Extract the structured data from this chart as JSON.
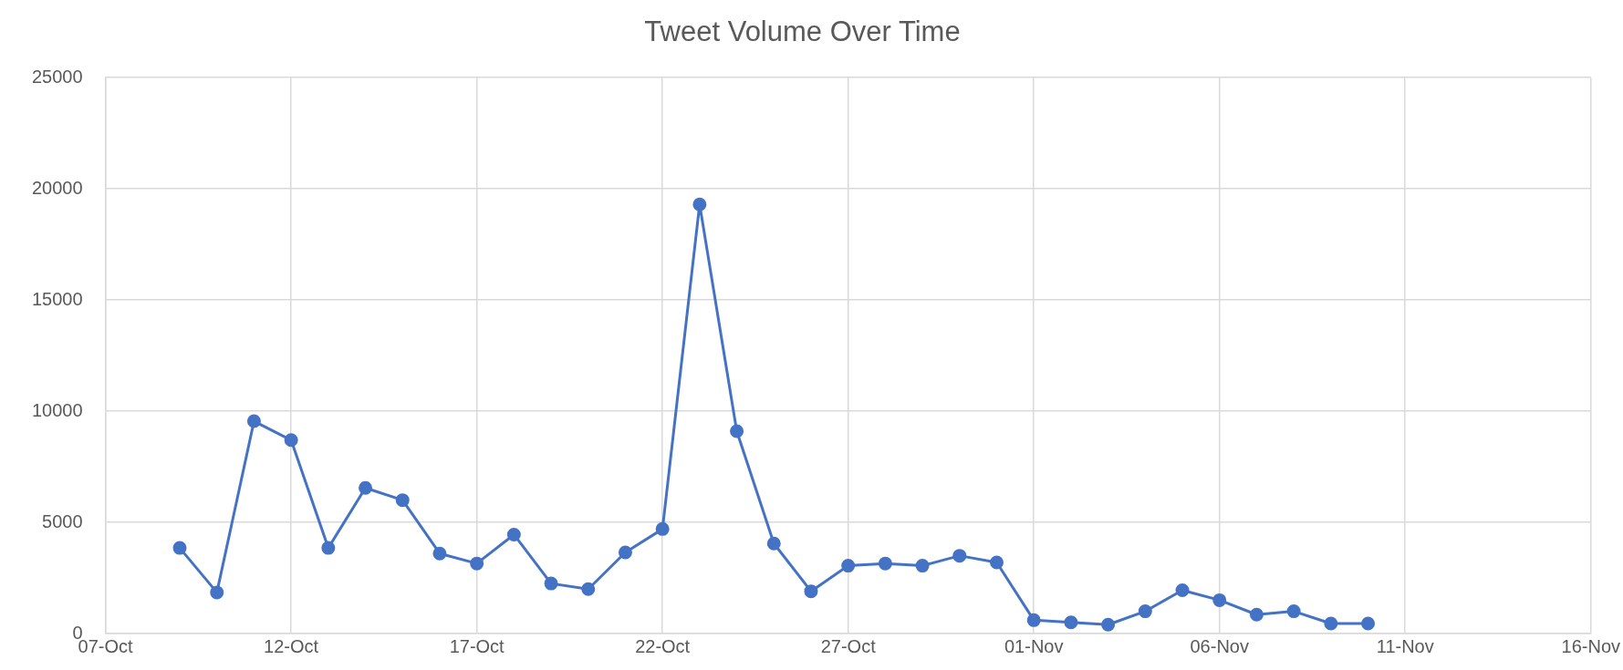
{
  "chart_data": {
    "type": "line",
    "title": "Tweet Volume Over Time",
    "x": [
      "--10-09",
      "--10-10",
      "--10-11",
      "--10-12",
      "--10-13",
      "--10-14",
      "--10-15",
      "--10-16",
      "--10-17",
      "--10-18",
      "--10-19",
      "--10-20",
      "--10-21",
      "--10-22",
      "--10-23",
      "--10-24",
      "--10-25",
      "--10-26",
      "--10-27",
      "--10-28",
      "--10-29",
      "--10-30",
      "--10-31",
      "--11-01",
      "--11-02",
      "--11-03",
      "--11-04",
      "--11-05",
      "--11-06",
      "--11-07",
      "--11-08",
      "--11-09",
      "--11-10"
    ],
    "series": [
      {
        "color": "#4472c4",
        "values": [
          3850,
          1850,
          9550,
          8700,
          3850,
          6550,
          6000,
          3600,
          3150,
          4450,
          2250,
          2000,
          3650,
          4700,
          19300,
          9100,
          4050,
          1900,
          3050,
          3150,
          3050,
          3500,
          3200,
          600,
          500,
          400,
          1000,
          1950,
          1500,
          850,
          1000,
          450,
          450
        ]
      }
    ],
    "xlim": [
      "--10-07",
      "--11-16"
    ],
    "xticks": [
      {
        "value": "--10-07",
        "label": "07-Oct"
      },
      {
        "value": "--10-12",
        "label": "12-Oct"
      },
      {
        "value": "--10-17",
        "label": "17-Oct"
      },
      {
        "value": "--10-22",
        "label": "22-Oct"
      },
      {
        "value": "--10-27",
        "label": "27-Oct"
      },
      {
        "value": "--11-01",
        "label": "01-Nov"
      },
      {
        "value": "--11-06",
        "label": "06-Nov"
      },
      {
        "value": "--11-11",
        "label": "11-Nov"
      },
      {
        "value": "--11-16",
        "label": "16-Nov"
      }
    ],
    "ylim": [
      0,
      25000
    ],
    "yticks": [
      0,
      5000,
      10000,
      15000,
      20000,
      25000
    ],
    "grid": true,
    "legend": false,
    "marker": "circle",
    "line_style": "solid"
  }
}
